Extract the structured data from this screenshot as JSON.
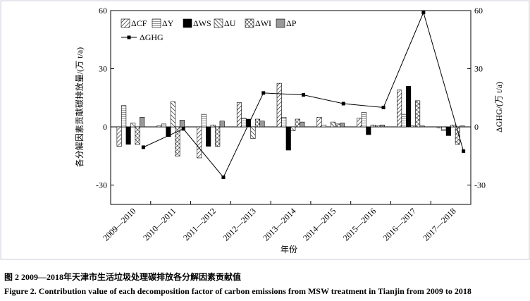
{
  "chart_data": {
    "type": "bar",
    "categories": [
      "2009—2010",
      "2010—2011",
      "2011—2012",
      "2012—2013",
      "2013—2014",
      "2014—2015",
      "2015—2016",
      "2016—2017",
      "2017—2018"
    ],
    "x_label": "年份",
    "y_label": "各分解因素贡献碳排放量/(万 t/a)",
    "y2_label": "ΔGHG/(万 t/a)",
    "ylim": [
      -40,
      60
    ],
    "yticks": [
      -30,
      0,
      30,
      60
    ],
    "y2lim": [
      -40,
      60
    ],
    "y2ticks": [
      -30,
      0,
      30,
      60
    ],
    "series": [
      {
        "name": "ΔCF",
        "color": "#000000",
        "pattern": "diag",
        "values": [
          -10,
          0.5,
          -16,
          12.5,
          22.5,
          5,
          4.5,
          19,
          -0.5
        ]
      },
      {
        "name": "ΔY",
        "color": "#000000",
        "pattern": "hlines",
        "values": [
          11,
          1.5,
          6.5,
          4.5,
          5,
          1,
          7.5,
          6.5,
          -2
        ]
      },
      {
        "name": "ΔWS",
        "color": "#000000",
        "pattern": "solid",
        "values": [
          -9,
          -5,
          -10,
          4,
          -12,
          0,
          -4,
          21,
          -4.5
        ]
      },
      {
        "name": "ΔU",
        "color": "#000000",
        "pattern": "backdiag",
        "values": [
          2,
          13,
          1,
          -6,
          -2,
          2.5,
          1,
          0.5,
          1
        ]
      },
      {
        "name": "ΔWI",
        "color": "#000000",
        "pattern": "cross",
        "values": [
          -9,
          -15,
          -10,
          4,
          4,
          1.5,
          0.5,
          13.5,
          -9
        ]
      },
      {
        "name": "ΔP",
        "color": "#999999",
        "pattern": "solid",
        "values": [
          5,
          3.5,
          3,
          3,
          2.5,
          2,
          1,
          0.5,
          0.5
        ]
      },
      {
        "name": "ΔGHG",
        "color": "#000000",
        "type": "line",
        "axis": "y2",
        "values": [
          -10.5,
          -1,
          -26,
          17.5,
          16.5,
          12,
          10,
          59,
          -12.5
        ]
      }
    ],
    "caption_cn": "图 2  2009—2018年天津市生活垃圾处理碳排放各分解因素贡献值",
    "caption_en": "Figure 2.  Contribution value of each decomposition factor of carbon emissions from MSW treatment in Tianjin from 2009 to 2018"
  }
}
